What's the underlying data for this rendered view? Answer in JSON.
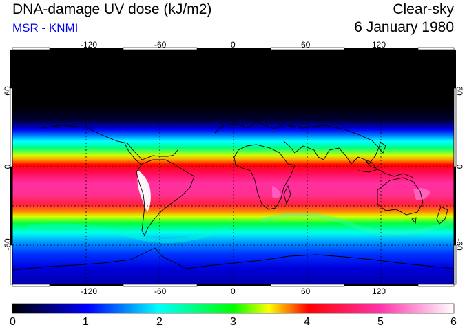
{
  "title": "DNA-damage UV dose (kJ/m2)",
  "subtitle": "MSR - KNMI",
  "condition": "Clear-sky",
  "date": "6 January 1980",
  "map": {
    "lon_ticks": [
      "-120",
      "-60",
      "0",
      "60",
      "120"
    ],
    "lat_ticks": [
      "60",
      "0",
      "-60"
    ],
    "lat_ticks_right": [
      "60",
      "0",
      "-60"
    ],
    "lon_range": [
      -180,
      180
    ],
    "lat_range": [
      -90,
      90
    ]
  },
  "colorbar": {
    "labels": [
      "0",
      "1",
      "2",
      "3",
      "4",
      "5",
      "6"
    ],
    "min": 0,
    "max": 6,
    "colors": [
      "#000000",
      "#0000ff",
      "#00ffff",
      "#00ff00",
      "#ffff00",
      "#ff0000",
      "#ff33aa",
      "#ffffff"
    ]
  }
}
